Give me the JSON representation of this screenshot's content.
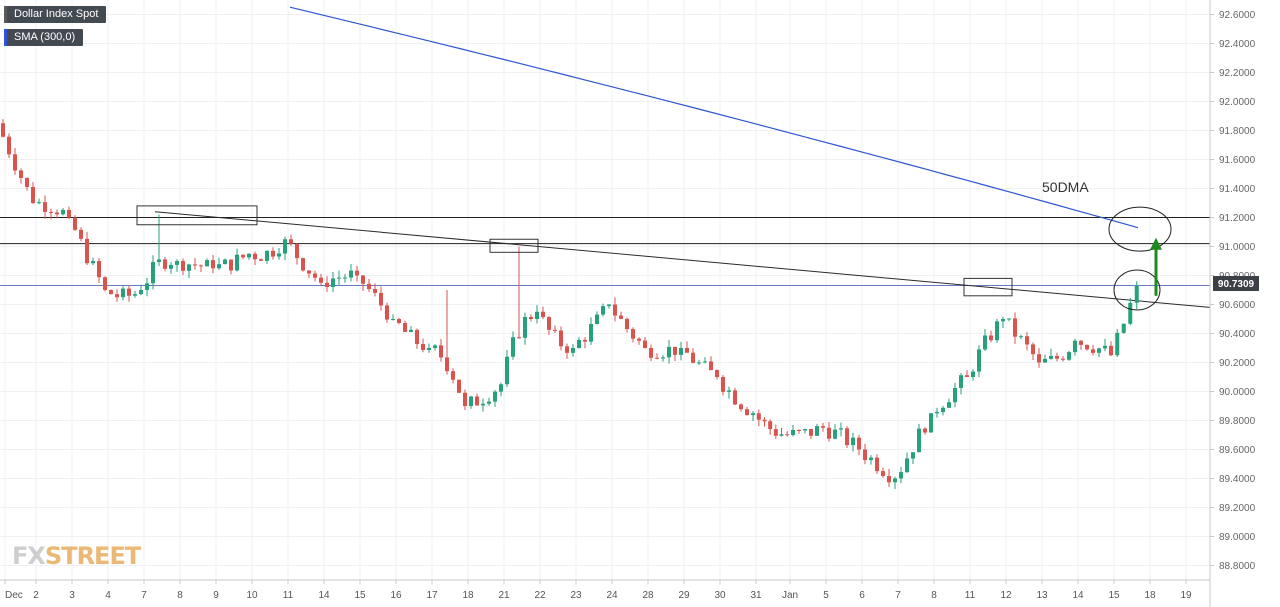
{
  "legend": [
    {
      "label": "Dollar Index Spot",
      "color": "#5a5a5a"
    },
    {
      "label": "SMA (300,0)",
      "color": "#2f55d4"
    }
  ],
  "watermark": {
    "part1": "FX",
    "part2": "STREET"
  },
  "annotation_50dma": "50DMA",
  "price_tag": "90.7309",
  "colors": {
    "up": "#26a17b",
    "down": "#d9534f",
    "sma": "#2f55d4",
    "arrow": "#1e8a1e"
  },
  "chart_data": {
    "type": "candlestick",
    "title": "",
    "ylim": [
      88.7,
      92.7
    ],
    "y_ticks": [
      88.8,
      89.0,
      89.2,
      89.4,
      89.6,
      89.8,
      90.0,
      90.2,
      90.4,
      90.6,
      90.8,
      91.0,
      91.2,
      91.4,
      91.6,
      91.8,
      92.0,
      92.2,
      92.4,
      92.6
    ],
    "x_ticks": [
      "Dec",
      "2",
      "3",
      "4",
      "7",
      "8",
      "9",
      "10",
      "11",
      "14",
      "15",
      "16",
      "17",
      "18",
      "21",
      "22",
      "23",
      "24",
      "28",
      "29",
      "30",
      "31",
      "Jan",
      "5",
      "6",
      "7",
      "8",
      "11",
      "12",
      "13",
      "14",
      "15",
      "18",
      "19"
    ],
    "horizontal_levels": [
      91.2,
      91.02,
      90.73
    ],
    "last_price": 90.7309,
    "series": [
      {
        "name": "Dollar Index Spot",
        "ohlc_daily": [
          {
            "date": "Dec",
            "open": 91.85,
            "high": 91.9,
            "low": 91.25,
            "close": 91.3
          },
          {
            "date": "2",
            "open": 91.3,
            "high": 91.5,
            "low": 91.1,
            "close": 91.2
          },
          {
            "date": "3",
            "open": 91.2,
            "high": 91.25,
            "low": 90.6,
            "close": 90.7
          },
          {
            "date": "4",
            "open": 90.7,
            "high": 90.75,
            "low": 90.5,
            "close": 90.7
          },
          {
            "date": "7",
            "open": 90.7,
            "high": 91.22,
            "low": 90.65,
            "close": 90.9
          },
          {
            "date": "8",
            "open": 90.9,
            "high": 91.0,
            "low": 90.75,
            "close": 90.85
          },
          {
            "date": "9",
            "open": 90.85,
            "high": 91.05,
            "low": 90.7,
            "close": 90.95
          },
          {
            "date": "10",
            "open": 90.95,
            "high": 91.15,
            "low": 90.7,
            "close": 91.05
          },
          {
            "date": "11",
            "open": 91.05,
            "high": 91.1,
            "low": 90.65,
            "close": 90.75
          },
          {
            "date": "14",
            "open": 90.75,
            "high": 91.0,
            "low": 90.6,
            "close": 90.8
          },
          {
            "date": "15",
            "open": 90.8,
            "high": 90.85,
            "low": 90.45,
            "close": 90.5
          },
          {
            "date": "16",
            "open": 90.5,
            "high": 90.55,
            "low": 90.15,
            "close": 90.3
          },
          {
            "date": "17",
            "open": 90.3,
            "high": 90.7,
            "low": 89.8,
            "close": 89.9
          },
          {
            "date": "18",
            "open": 89.9,
            "high": 90.15,
            "low": 89.75,
            "close": 90.05
          },
          {
            "date": "21",
            "open": 90.05,
            "high": 91.0,
            "low": 90.0,
            "close": 90.55
          },
          {
            "date": "22",
            "open": 90.55,
            "high": 90.6,
            "low": 90.05,
            "close": 90.3
          },
          {
            "date": "23",
            "open": 90.3,
            "high": 90.7,
            "low": 90.15,
            "close": 90.6
          },
          {
            "date": "24",
            "open": 90.6,
            "high": 90.65,
            "low": 90.2,
            "close": 90.3
          },
          {
            "date": "28",
            "open": 90.3,
            "high": 90.4,
            "low": 90.15,
            "close": 90.3
          },
          {
            "date": "29",
            "open": 90.3,
            "high": 90.35,
            "low": 90.0,
            "close": 90.1
          },
          {
            "date": "30",
            "open": 90.1,
            "high": 90.15,
            "low": 89.75,
            "close": 89.85
          },
          {
            "date": "31",
            "open": 89.85,
            "high": 89.95,
            "low": 89.5,
            "close": 89.7
          },
          {
            "date": "Jan",
            "open": 89.7,
            "high": 89.95,
            "low": 89.45,
            "close": 89.75
          },
          {
            "date": "5",
            "open": 89.75,
            "high": 89.9,
            "low": 89.5,
            "close": 89.6
          },
          {
            "date": "6",
            "open": 89.6,
            "high": 89.8,
            "low": 89.2,
            "close": 89.4
          },
          {
            "date": "7",
            "open": 89.4,
            "high": 89.95,
            "low": 89.3,
            "close": 89.85
          },
          {
            "date": "8",
            "open": 89.85,
            "high": 90.25,
            "low": 89.7,
            "close": 90.1
          },
          {
            "date": "11",
            "open": 90.1,
            "high": 90.65,
            "low": 90.05,
            "close": 90.5
          },
          {
            "date": "12",
            "open": 90.5,
            "high": 90.6,
            "low": 90.1,
            "close": 90.2
          },
          {
            "date": "13",
            "open": 90.2,
            "high": 90.45,
            "low": 89.95,
            "close": 90.35
          },
          {
            "date": "14",
            "open": 90.35,
            "high": 90.55,
            "low": 90.1,
            "close": 90.25
          },
          {
            "date": "15",
            "open": 90.25,
            "high": 90.76,
            "low": 90.15,
            "close": 90.73
          }
        ]
      },
      {
        "name": "SMA (300,0)",
        "x_start": "7",
        "x_end": "18",
        "start": 92.65,
        "end": 91.13
      }
    ]
  }
}
